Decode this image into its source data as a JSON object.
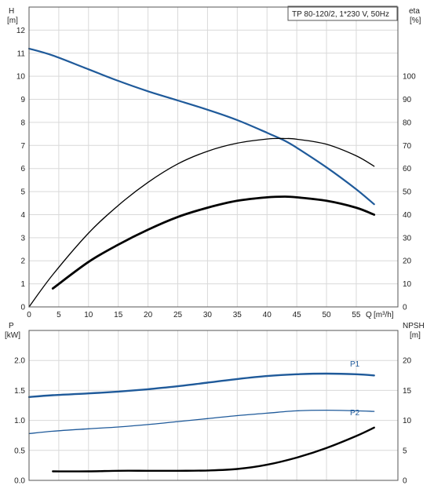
{
  "chart_data": [
    {
      "type": "line",
      "title": "TP 80-120/2, 1*230 V, 50Hz",
      "x_label_1": "Q",
      "x_label_2": "[m³/h]",
      "y_left_label_1": "H",
      "y_left_label_2": "[m]",
      "y_right_label_1": "eta",
      "y_right_label_2": "[%]",
      "xlim": [
        0,
        62
      ],
      "ylim_left": [
        0,
        13
      ],
      "ylim_right": [
        0,
        130
      ],
      "x_ticks": [
        0,
        5,
        10,
        15,
        20,
        25,
        30,
        35,
        40,
        45,
        50,
        55
      ],
      "y_left_ticks": [
        0,
        1,
        2,
        3,
        4,
        5,
        6,
        7,
        8,
        9,
        10,
        11,
        12
      ],
      "y_right_ticks": [
        0,
        10,
        20,
        30,
        40,
        50,
        60,
        70,
        80,
        90,
        100
      ],
      "grid": true,
      "series": [
        {
          "axis": "left",
          "color": "#1f5a9a",
          "x": [
            0,
            4,
            10,
            15,
            20,
            25,
            30,
            35,
            40,
            43,
            45,
            50,
            55,
            58
          ],
          "y": [
            11.2,
            10.9,
            10.3,
            9.8,
            9.35,
            8.95,
            8.55,
            8.1,
            7.55,
            7.2,
            6.9,
            6.05,
            5.1,
            4.45
          ]
        },
        {
          "axis": "right",
          "color": "#000000",
          "x": [
            0,
            4,
            10,
            15,
            20,
            25,
            30,
            35,
            40,
            43,
            45,
            50,
            55,
            58
          ],
          "y": [
            0,
            14,
            32,
            44,
            54,
            62,
            67.5,
            71,
            72.8,
            73,
            72.7,
            70.5,
            65.5,
            61
          ]
        },
        {
          "axis": "left",
          "color": "#000000",
          "x": [
            4,
            10,
            15,
            20,
            25,
            30,
            35,
            40,
            43,
            45,
            50,
            55,
            58
          ],
          "y": [
            0.8,
            1.95,
            2.7,
            3.35,
            3.9,
            4.3,
            4.6,
            4.75,
            4.78,
            4.75,
            4.6,
            4.3,
            4.0
          ]
        }
      ]
    },
    {
      "type": "line",
      "y_left_label_1": "P",
      "y_left_label_2": "[kW]",
      "y_right_label_1": "NPSH",
      "y_right_label_2": "[m]",
      "xlim": [
        0,
        62
      ],
      "ylim_left": [
        0,
        2.5
      ],
      "ylim_right": [
        0,
        25
      ],
      "x_ticks": [
        0,
        5,
        10,
        15,
        20,
        25,
        30,
        35,
        40,
        45,
        50,
        55
      ],
      "y_left_ticks": [
        0.0,
        0.5,
        1.0,
        1.5,
        2.0
      ],
      "y_left_tick_labels": [
        "0.0",
        "0.5",
        "1.0",
        "1.5",
        "2.0"
      ],
      "y_right_ticks": [
        0,
        5,
        10,
        15,
        20
      ],
      "grid": true,
      "series": [
        {
          "name": "P1",
          "axis": "left",
          "color": "#1f5a9a",
          "x": [
            0,
            4,
            10,
            15,
            20,
            25,
            30,
            35,
            40,
            45,
            50,
            55,
            58
          ],
          "y": [
            1.39,
            1.42,
            1.45,
            1.48,
            1.52,
            1.57,
            1.63,
            1.69,
            1.74,
            1.77,
            1.78,
            1.77,
            1.75
          ]
        },
        {
          "name": "P2",
          "axis": "left",
          "color": "#1f5a9a",
          "x": [
            0,
            4,
            10,
            15,
            20,
            25,
            30,
            35,
            40,
            45,
            50,
            55,
            58
          ],
          "y": [
            0.78,
            0.82,
            0.86,
            0.89,
            0.93,
            0.98,
            1.03,
            1.08,
            1.12,
            1.16,
            1.17,
            1.16,
            1.15
          ]
        },
        {
          "axis": "right",
          "color": "#000000",
          "x": [
            4,
            10,
            15,
            20,
            25,
            30,
            35,
            40,
            45,
            50,
            55,
            58
          ],
          "y": [
            1.5,
            1.5,
            1.6,
            1.6,
            1.6,
            1.65,
            1.9,
            2.6,
            3.8,
            5.4,
            7.4,
            8.8
          ]
        }
      ]
    }
  ]
}
